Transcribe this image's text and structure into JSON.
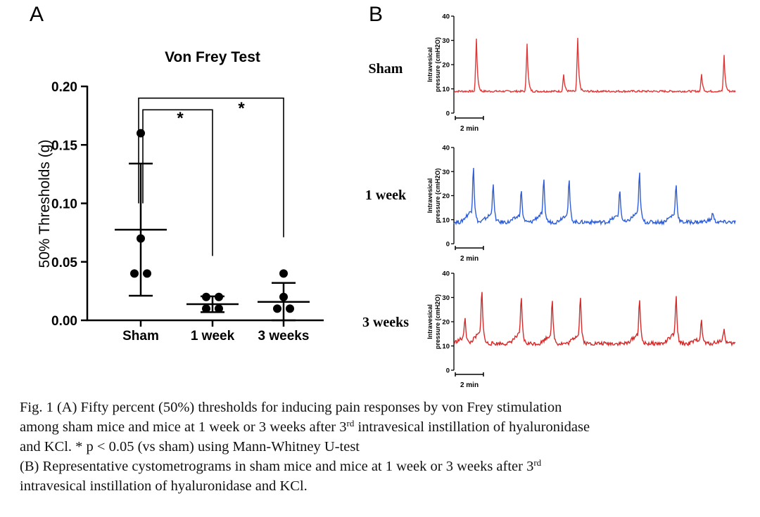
{
  "panel_a": {
    "letter": "A"
  },
  "panel_b": {
    "letter": "B"
  },
  "chart_data": [
    {
      "type": "scatter",
      "title": "Von Frey Test",
      "xlabel": "",
      "ylabel": "50% Thresholds (g)",
      "ylim": [
        0,
        0.2
      ],
      "yticks": [
        "0.00",
        "0.05",
        "0.10",
        "0.15",
        "0.20"
      ],
      "categories": [
        "Sham",
        "1 week",
        "3 weeks"
      ],
      "points": [
        [
          0.16,
          0.07,
          0.04,
          0.04
        ],
        [
          0.02,
          0.02,
          0.01,
          0.01
        ],
        [
          0.04,
          0.02,
          0.01,
          0.01
        ]
      ],
      "mean": [
        0.0775,
        0.0138,
        0.0158
      ],
      "sd_upper": [
        0.134,
        0.0205,
        0.032
      ],
      "sd_lower": [
        0.021,
        0.007,
        0.0
      ],
      "significance": [
        {
          "from": "Sham",
          "to": "1 week",
          "label": "*"
        },
        {
          "from": "Sham",
          "to": "3 weeks",
          "label": "*"
        }
      ]
    },
    {
      "type": "line",
      "title": "",
      "ylabel": "Intravesical pressure (cmH2O)",
      "ylim": [
        0,
        40
      ],
      "yticks": [
        "0",
        "10",
        "20",
        "30",
        "40"
      ],
      "scale_bar": "2 min",
      "series": [
        {
          "name": "Sham",
          "color": "#e23636",
          "baseline": 9,
          "peaks": [
            [
              0.08,
              31
            ],
            [
              0.26,
              29
            ],
            [
              0.39,
              16
            ],
            [
              0.44,
              31
            ],
            [
              0.88,
              16
            ],
            [
              0.96,
              24
            ]
          ]
        },
        {
          "name": "1 week",
          "color": "#2f5ed8",
          "baseline": 9,
          "peaks": [
            [
              0.07,
              32
            ],
            [
              0.14,
              25
            ],
            [
              0.24,
              22
            ],
            [
              0.32,
              26
            ],
            [
              0.41,
              26
            ],
            [
              0.59,
              22
            ],
            [
              0.66,
              29
            ],
            [
              0.79,
              25
            ],
            [
              0.92,
              13
            ]
          ]
        },
        {
          "name": "3 weeks",
          "color": "#d52b2b",
          "baseline": 11,
          "peaks": [
            [
              0.04,
              22
            ],
            [
              0.1,
              33
            ],
            [
              0.24,
              30
            ],
            [
              0.35,
              28
            ],
            [
              0.45,
              30
            ],
            [
              0.66,
              29
            ],
            [
              0.79,
              30
            ],
            [
              0.88,
              20
            ],
            [
              0.96,
              17
            ]
          ]
        }
      ]
    }
  ],
  "caption": {
    "line1": "Fig. 1  (A) Fifty percent (50%) thresholds for inducing pain responses by von Frey stimulation",
    "line2_pre": "among sham mice and mice at 1 week or 3 weeks  after 3",
    "line2_sup": "rd",
    "line2_post": " intravesical instillation of hyaluronidase",
    "line3": "and KCl.   * p < 0.05 (vs sham) using Mann-Whitney U-test",
    "line4_pre": "(B) Representative cystometrograms  in sham mice and mice at 1 week or 3 weeks  after 3",
    "line4_sup": "rd",
    "line5": "intravesical instillation of hyaluronidase and KCl."
  }
}
